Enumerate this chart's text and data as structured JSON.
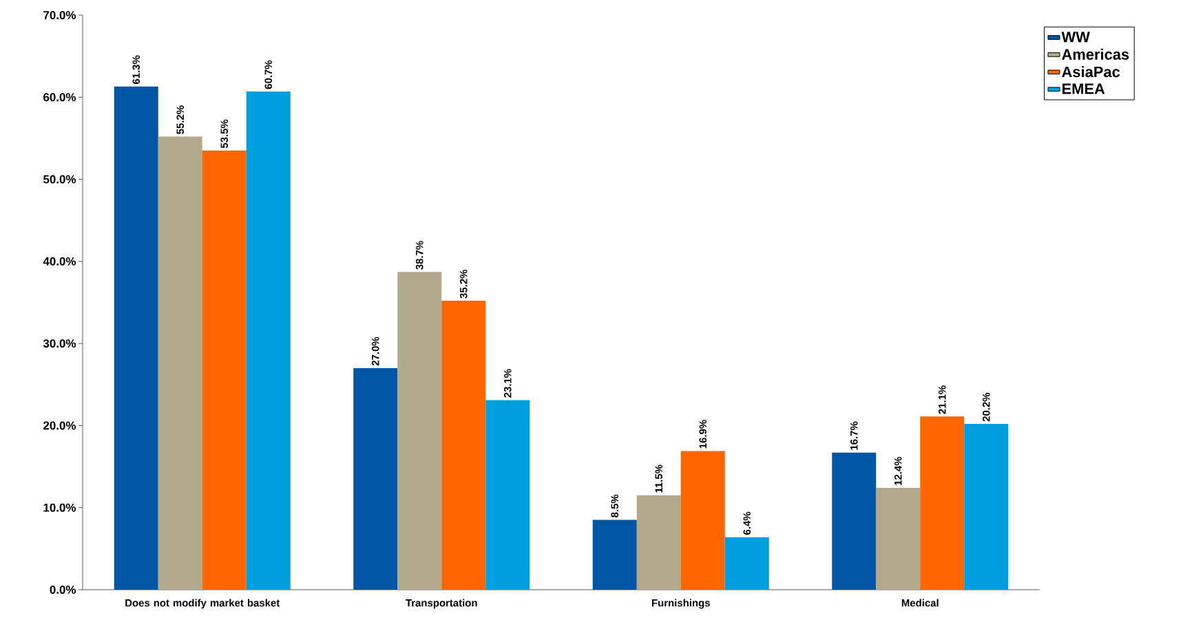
{
  "chart_data": {
    "type": "bar",
    "categories": [
      "Does not modify market basket",
      "Transportation",
      "Furnishings",
      "Medical"
    ],
    "series": [
      {
        "name": "WW",
        "color": "#0055a5",
        "values": [
          61.3,
          27.0,
          8.5,
          16.7
        ],
        "value_labels": [
          "61.3%",
          "27.0%",
          "8.5%",
          "16.7%"
        ]
      },
      {
        "name": "Americas",
        "color": "#b2a98a",
        "values": [
          55.2,
          38.7,
          11.5,
          12.4
        ],
        "value_labels": [
          "55.2%",
          "38.7%",
          "11.5%",
          "12.4%"
        ]
      },
      {
        "name": "AsiaPac",
        "color": "#ff6600",
        "values": [
          53.5,
          35.2,
          16.9,
          21.1
        ],
        "value_labels": [
          "53.5%",
          "35.2%",
          "16.9%",
          "21.1%"
        ]
      },
      {
        "name": "EMEA",
        "color": "#00a0e0",
        "values": [
          60.7,
          23.1,
          6.4,
          20.2
        ],
        "value_labels": [
          "60.7%",
          "23.1%",
          "6.4%",
          "20.2%"
        ]
      }
    ],
    "ylim": [
      0,
      70
    ],
    "yticks": [
      {
        "value": 0,
        "label": "0.0%"
      },
      {
        "value": 10,
        "label": "10.0%"
      },
      {
        "value": 20,
        "label": "20.0%"
      },
      {
        "value": 30,
        "label": "30.0%"
      },
      {
        "value": 40,
        "label": "40.0%"
      },
      {
        "value": 50,
        "label": "50.0%"
      },
      {
        "value": 60,
        "label": "60.0%"
      },
      {
        "value": 70,
        "label": "70.0%"
      }
    ],
    "grid": false,
    "legend": "top right"
  }
}
